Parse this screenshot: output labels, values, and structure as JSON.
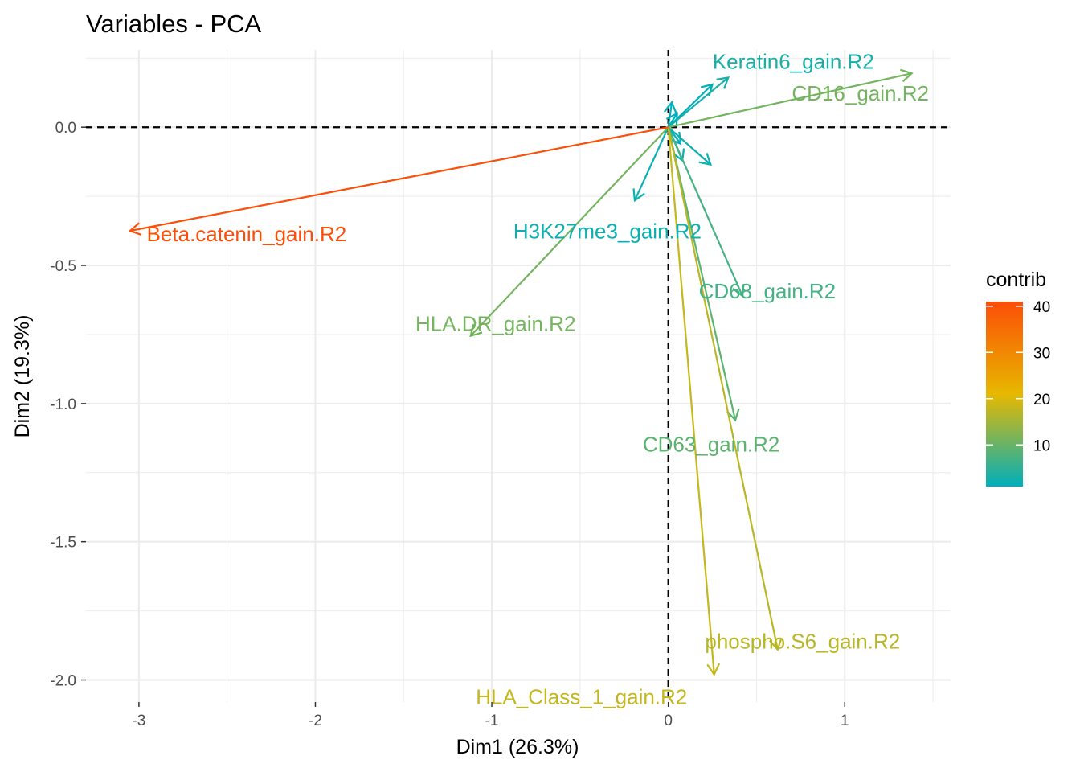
{
  "chart_data": {
    "type": "scatter",
    "subtype": "pca-variable-arrows",
    "title": "Variables - PCA",
    "xlabel": "Dim1 (26.3%)",
    "ylabel": "Dim2 (19.3%)",
    "xlim": [
      -3.3,
      1.6
    ],
    "ylim": [
      -2.08,
      0.28
    ],
    "x_ticks": [
      -3,
      -2,
      -1,
      0,
      1
    ],
    "x_tick_labels": [
      "-3",
      "-2",
      "-1",
      "0",
      "1"
    ],
    "y_ticks": [
      0.0,
      -0.5,
      -1.0,
      -1.5,
      -2.0
    ],
    "y_tick_labels": [
      "0.0",
      "-0.5",
      "-1.0",
      "-1.5",
      "-2.0"
    ],
    "grid": true,
    "reference_lines": [
      0,
      0
    ],
    "legend": {
      "title": "contrib",
      "position": "right",
      "ticks": [
        40,
        30,
        20,
        10
      ],
      "tick_labels": [
        "40",
        "30",
        "20",
        "10"
      ],
      "range": [
        1,
        41
      ],
      "gradient": [
        "#00AFBB",
        "#E7B800",
        "#FC4E07"
      ]
    },
    "variables": [
      {
        "label": "Beta.catenin_gain.R2",
        "x": -3.05,
        "y": -0.375,
        "contrib": 41
      },
      {
        "label": "Keratin6_gain.R2",
        "x": 0.34,
        "y": 0.18,
        "contrib": 3
      },
      {
        "label": "CD16_gain.R2",
        "x": 1.38,
        "y": 0.195,
        "contrib": 11
      },
      {
        "label": "H3K27me3_gain.R2",
        "x": -0.19,
        "y": -0.265,
        "contrib": 2
      },
      {
        "label": "CD68_gain.R2",
        "x": 0.42,
        "y": -0.61,
        "contrib": 7
      },
      {
        "label": "HLA.DR_gain.R2",
        "x": -1.12,
        "y": -0.755,
        "contrib": 11
      },
      {
        "label": "CD63_gain.R2",
        "x": 0.38,
        "y": -1.06,
        "contrib": 9
      },
      {
        "label": "phospho.S6_gain.R2",
        "x": 0.62,
        "y": -1.89,
        "contrib": 17
      },
      {
        "label": "HLA_Class_1_gain.R2",
        "x": 0.26,
        "y": -1.98,
        "contrib": 18
      },
      {
        "label": "",
        "x": 0.25,
        "y": 0.155,
        "contrib": 1
      },
      {
        "label": "",
        "x": 0.24,
        "y": -0.135,
        "contrib": 2
      },
      {
        "label": "",
        "x": 0.08,
        "y": -0.12,
        "contrib": 1
      },
      {
        "label": "",
        "x": 0.02,
        "y": 0.09,
        "contrib": 1
      },
      {
        "label": "",
        "x": 0.07,
        "y": -0.06,
        "contrib": 1
      },
      {
        "label": "",
        "x": 0.05,
        "y": 0.05,
        "contrib": 1
      }
    ]
  }
}
